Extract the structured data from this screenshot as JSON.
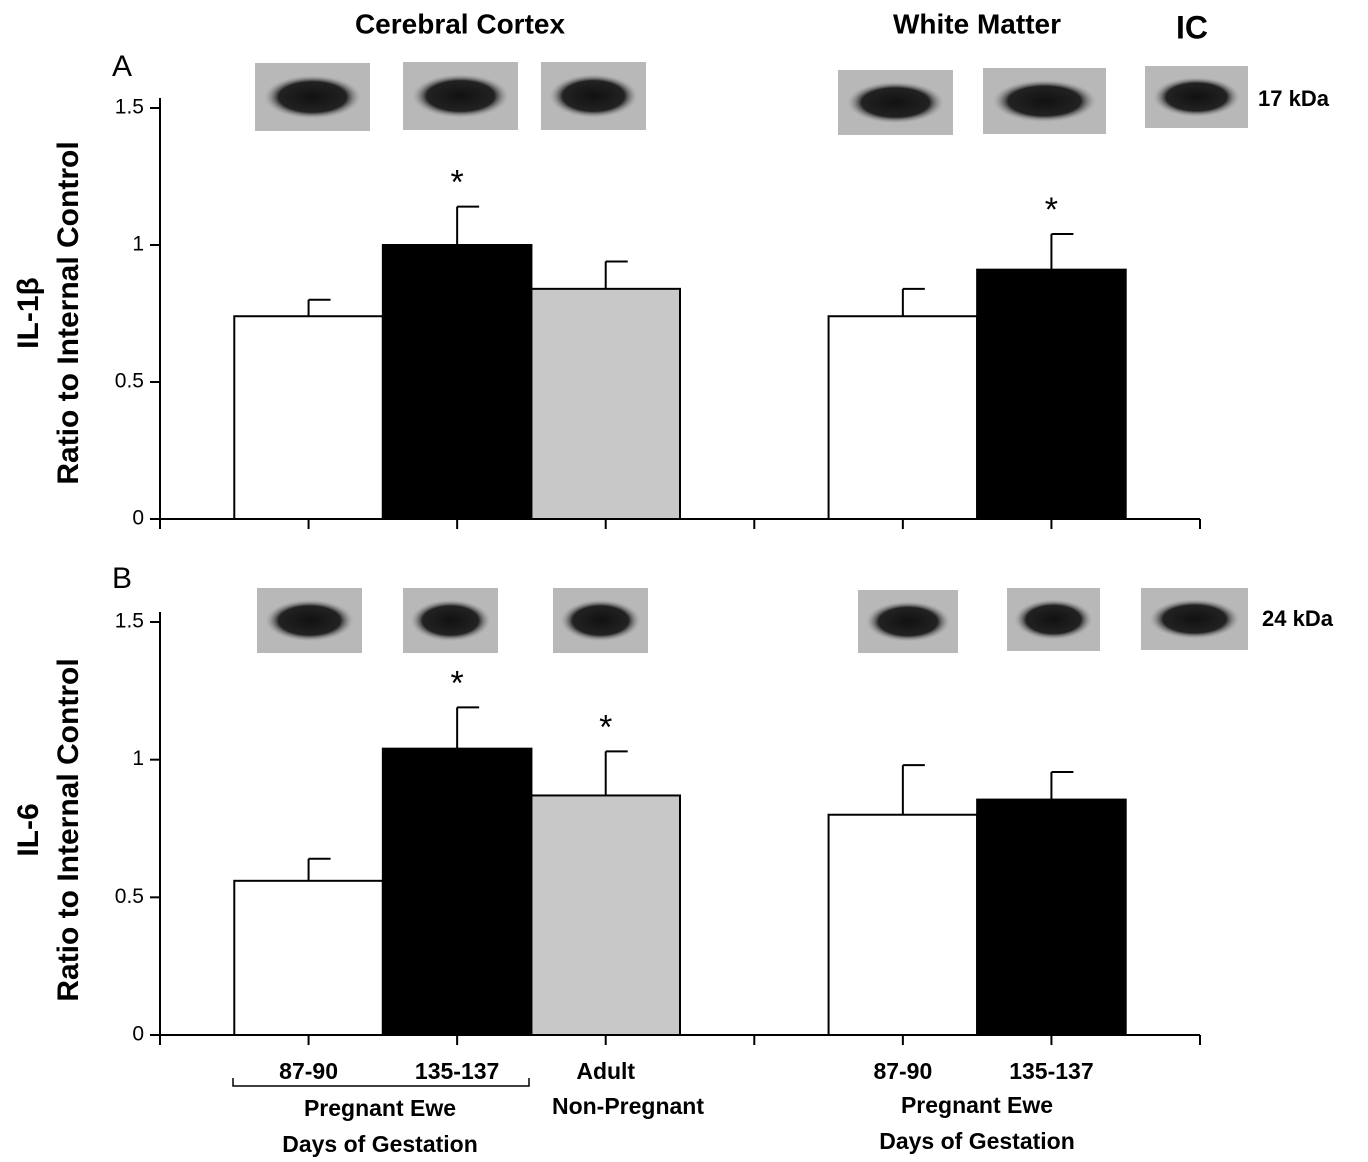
{
  "headings": [
    "Cerebral Cortex",
    "White Matter",
    "IC"
  ],
  "chart_data": [
    {
      "type": "bar",
      "panel": "A",
      "ylabel": [
        "IL-1β",
        "Ratio to Internal Control"
      ],
      "blot_label": "17 kDa",
      "ylim": [
        0,
        1.5
      ],
      "yticks": [
        0,
        0.5,
        1,
        1.5
      ],
      "values": [
        0.74,
        1.0,
        0.84,
        null,
        0.74,
        0.91
      ],
      "errors": [
        0.06,
        0.14,
        0.1,
        null,
        0.1,
        0.13
      ],
      "colors": [
        "#ffffff",
        "#000000",
        "#c8c8c8",
        null,
        "#ffffff",
        "#000000"
      ],
      "significance": [
        null,
        "*",
        null,
        null,
        null,
        "*"
      ]
    },
    {
      "type": "bar",
      "panel": "B",
      "ylabel": [
        "IL-6",
        "Ratio to Internal Control"
      ],
      "blot_label": "24 kDa",
      "ylim": [
        0,
        1.5
      ],
      "yticks": [
        0,
        0.5,
        1,
        1.5
      ],
      "categories": [
        "87-90",
        "135-137",
        "Adult",
        null,
        "87-90",
        "135-137"
      ],
      "values": [
        0.56,
        1.04,
        0.87,
        null,
        0.8,
        0.855
      ],
      "errors": [
        0.08,
        0.15,
        0.16,
        null,
        0.18,
        0.1
      ],
      "colors": [
        "#ffffff",
        "#000000",
        "#c8c8c8",
        null,
        "#ffffff",
        "#000000"
      ],
      "significance": [
        null,
        "*",
        "*",
        null,
        null,
        null
      ],
      "group_labels": [
        "Pregnant  Ewe",
        "Non-Pregnant",
        "Days of Gestation",
        "Pregnant  Ewe",
        "Days of Gestation"
      ]
    }
  ]
}
